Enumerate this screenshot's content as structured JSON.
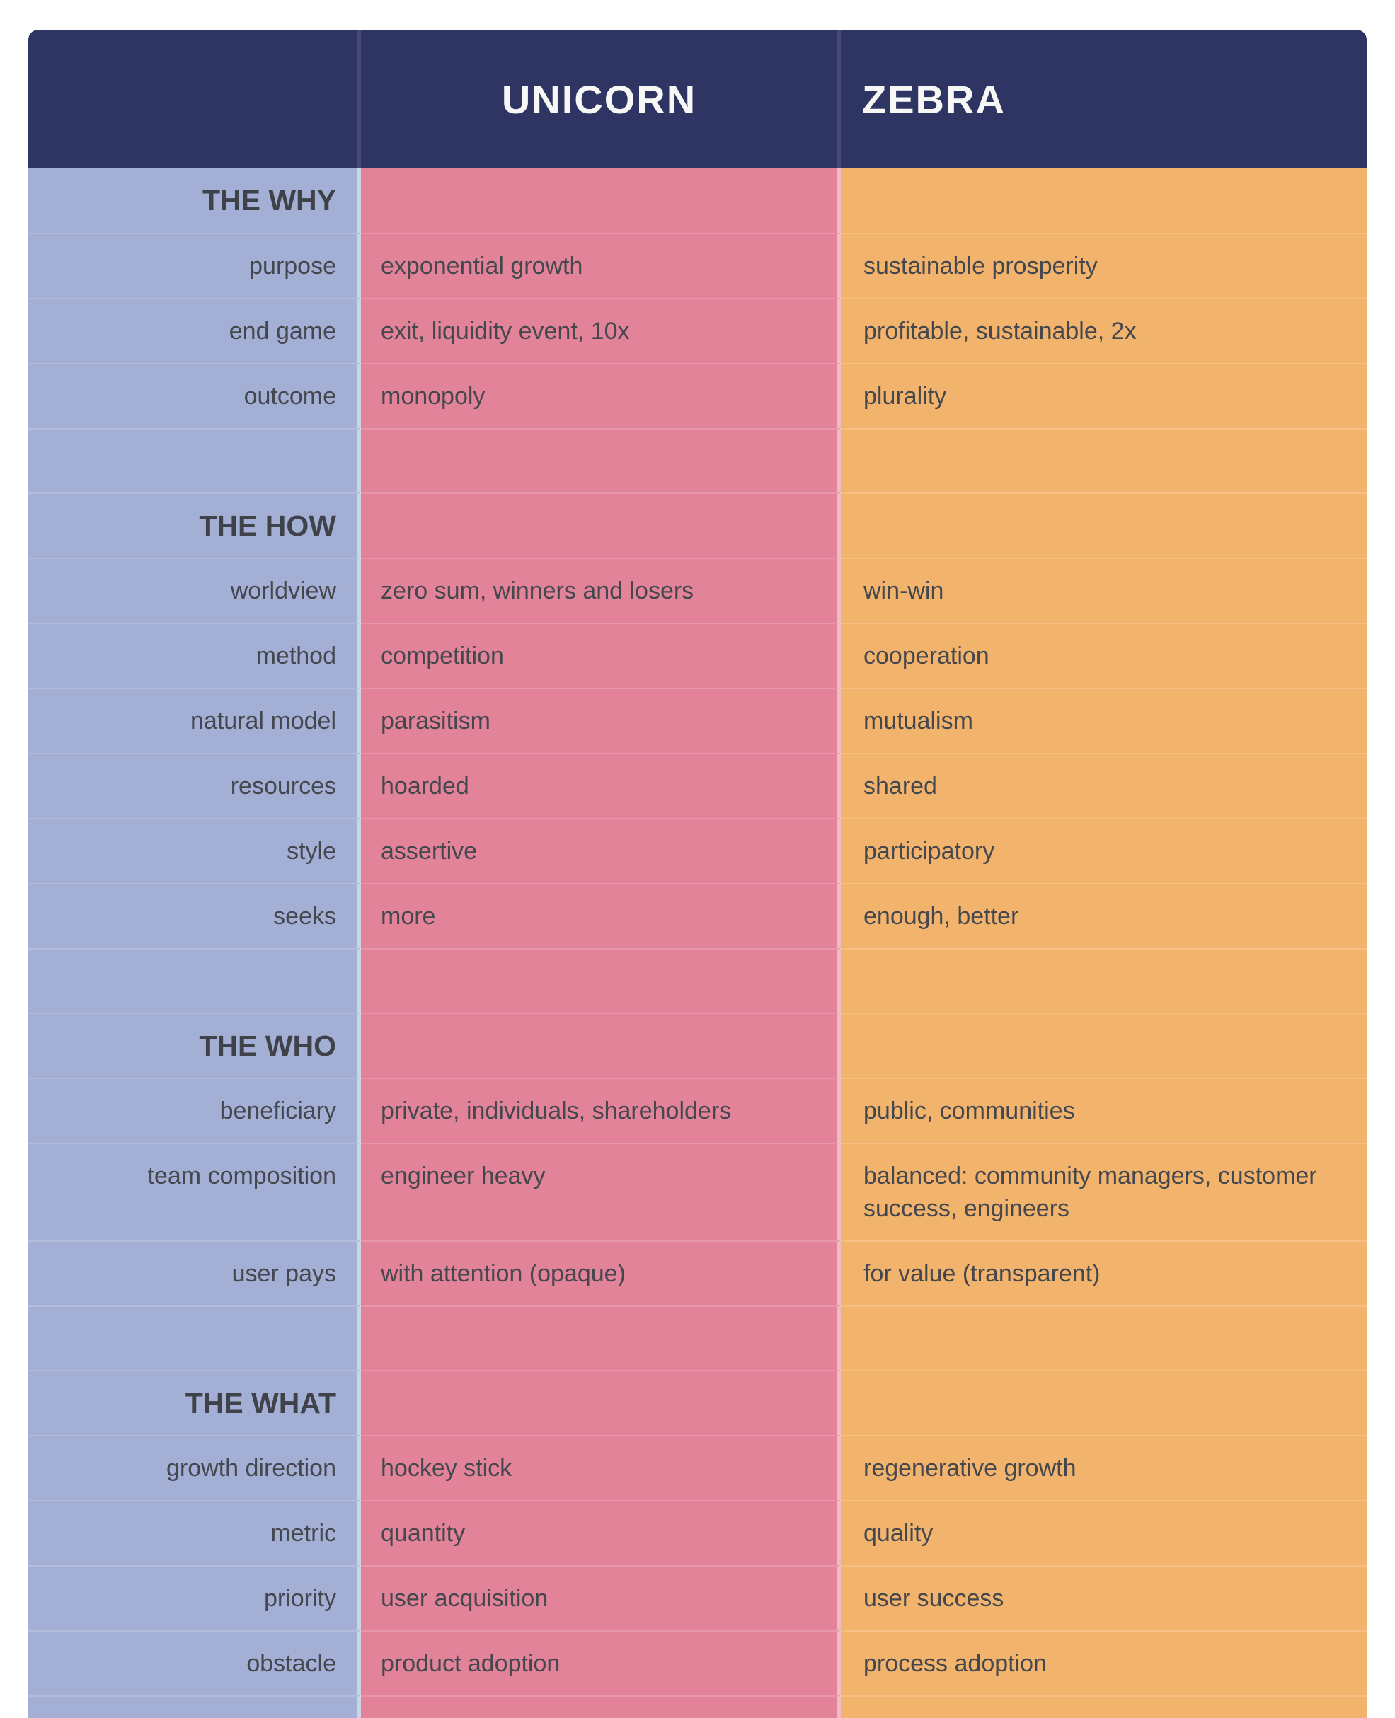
{
  "colors": {
    "header_bg": "#2e3562",
    "header_text": "#f7f7f5",
    "label_col": "#a3afd4",
    "unicorn_col": "#e28399",
    "zebra_col": "#f2b46d",
    "text": "#45474e",
    "section_text": "#3f4249"
  },
  "chart_data": {
    "type": "table",
    "columns": [
      "",
      "UNICORN",
      "ZEBRA"
    ],
    "sections": [
      {
        "title": "THE WHY",
        "rows": [
          {
            "label": "purpose",
            "unicorn": "exponential growth",
            "zebra": "sustainable prosperity"
          },
          {
            "label": "end game",
            "unicorn": "exit, liquidity event, 10x",
            "zebra": "profitable, sustainable, 2x"
          },
          {
            "label": "outcome",
            "unicorn": "monopoly",
            "zebra": "plurality"
          }
        ]
      },
      {
        "title": "THE HOW",
        "rows": [
          {
            "label": "worldview",
            "unicorn": "zero sum, winners and losers",
            "zebra": "win-win"
          },
          {
            "label": "method",
            "unicorn": "competition",
            "zebra": "cooperation"
          },
          {
            "label": "natural model",
            "unicorn": "parasitism",
            "zebra": "mutualism"
          },
          {
            "label": "resources",
            "unicorn": "hoarded",
            "zebra": "shared"
          },
          {
            "label": "style",
            "unicorn": "assertive",
            "zebra": "participatory"
          },
          {
            "label": "seeks",
            "unicorn": "more",
            "zebra": "enough, better"
          }
        ]
      },
      {
        "title": "THE WHO",
        "rows": [
          {
            "label": "beneficiary",
            "unicorn": "private, individuals, shareholders",
            "zebra": "public, communities"
          },
          {
            "label": "team composition",
            "unicorn": "engineer heavy",
            "zebra": "balanced: community managers, customer success, engineers"
          },
          {
            "label": "user pays",
            "unicorn": "with attention (opaque)",
            "zebra": "for value (transparent)"
          }
        ]
      },
      {
        "title": "THE WHAT",
        "rows": [
          {
            "label": "growth direction",
            "unicorn": "hockey stick",
            "zebra": "regenerative growth"
          },
          {
            "label": "metric",
            "unicorn": "quantity",
            "zebra": "quality"
          },
          {
            "label": "priority",
            "unicorn": "user acquisition",
            "zebra": "user success"
          },
          {
            "label": "obstacle",
            "unicorn": "product adoption",
            "zebra": "process adoption"
          }
        ]
      }
    ]
  }
}
